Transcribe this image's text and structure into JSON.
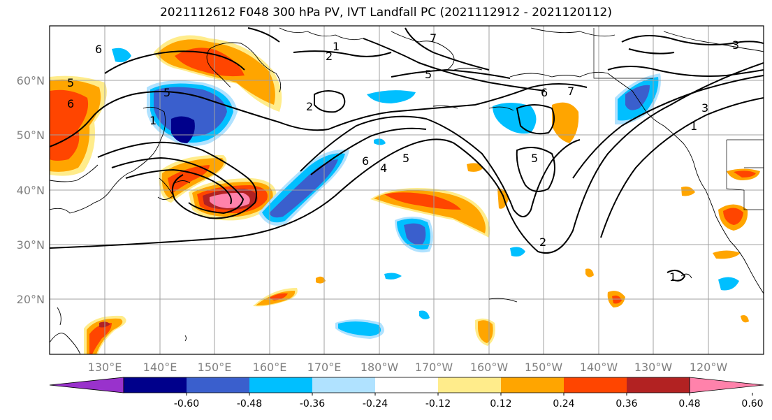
{
  "title": "2021112612 F048 300 hPa PV, IVT Landfall PC (2021112912 - 2021120112)",
  "lat_labels": [
    "60°N",
    "50°N",
    "40°N",
    "30°N",
    "20°N"
  ],
  "lon_labels": [
    "130°E",
    "140°E",
    "150°E",
    "160°E",
    "170°E",
    "180°W",
    "170°W",
    "160°W",
    "150°W",
    "140°W",
    "130°W",
    "120°W"
  ],
  "colorbar": {
    "colors": [
      "#9932cc",
      "#00008b",
      "#3a5fcd",
      "#00bfff",
      "#b0e2ff",
      "#ffffff",
      "#ffec8b",
      "#ffa500",
      "#ff4500",
      "#b22222",
      "#ff82ab"
    ],
    "tick_labels": [
      "-0.60",
      "-0.48",
      "-0.36",
      "-0.24",
      "-0.12",
      "0.12",
      "0.24",
      "0.36",
      "0.48",
      "0.60"
    ]
  },
  "contour_labels": [
    "6",
    "5",
    "6",
    "1",
    "2",
    "1",
    "7",
    "5",
    "6",
    "7",
    "3",
    "2",
    "5",
    "6",
    "4",
    "5",
    "5",
    "3",
    "1",
    "2",
    "1"
  ],
  "colors": {
    "frame": "#000000",
    "grid": "#a0a0a0",
    "land": "#000000"
  }
}
